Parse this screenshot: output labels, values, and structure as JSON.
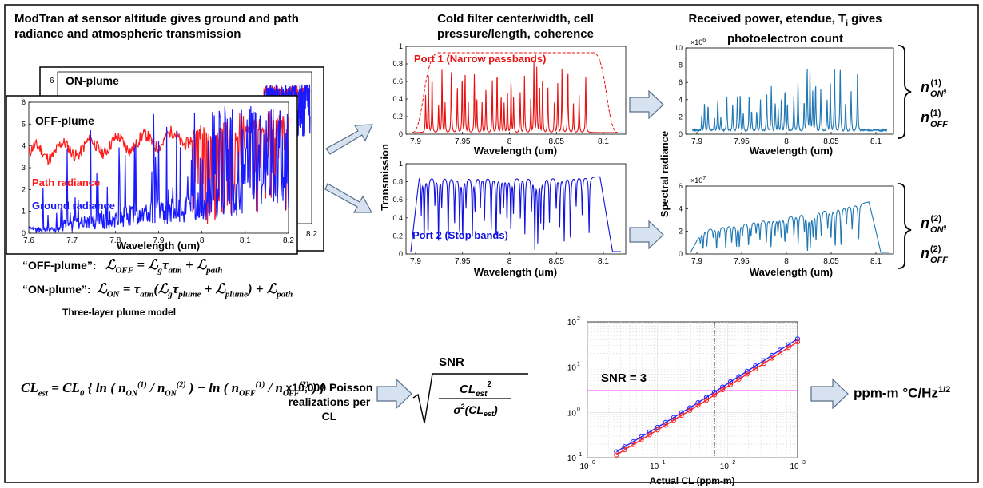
{
  "headings": {
    "left": "ModTran at sensor altitude gives ground and path radiance and atmospheric transmission",
    "middle": "Cold filter center/width, cell pressure/length, coherence",
    "right_prefix": "Received power, etendue, T",
    "right_sub": "i",
    "right_suffix": " gives photoelectron count"
  },
  "left_panel": {
    "back_label": "ON-plume",
    "front_label": "OFF-plume",
    "path_label": "Path radiance",
    "ground_label": "Ground radiance",
    "xlabel": "Wavelength (um)",
    "x_ticks": [
      "7.6",
      "7.7",
      "7.8",
      "7.9",
      "8",
      "8.1",
      "8.2"
    ],
    "y_ticks": [
      "0",
      "1",
      "2",
      "3",
      "4",
      "5",
      "6"
    ],
    "back_y_tick": "6",
    "back_x_tick": "8.2",
    "colors": {
      "path": "#ff1a1a",
      "ground": "#1a1aff"
    }
  },
  "equations": {
    "off_label": "“OFF-plume”:",
    "on_label": "“ON-plume”:",
    "model_caption": "Three-layer plume model",
    "realizations": "x10,000 Poisson realizations per CL",
    "snr_title": "SNR",
    "output": "ppm-m °C/Hz",
    "output_exp": "1/2"
  },
  "filter_panels": {
    "port1_label": "Port 1 (Narrow passbands)",
    "port2_label": "Port 2 (Stop bands)",
    "ylabel": "Transmission",
    "xlabel": "Wavelength (um)",
    "x_ticks": [
      "7.9",
      "7.95",
      "8",
      "8.05",
      "8.1"
    ],
    "y_ticks": [
      "0",
      "0.2",
      "0.4",
      "0.6",
      "0.8",
      "1"
    ],
    "colors": {
      "port1": "#e81010",
      "port2": "#1010e0"
    }
  },
  "radiance_panels": {
    "ylabel": "Spectral radiance",
    "xlabel": "Wavelength (um)",
    "x_ticks": [
      "7.9",
      "7.95",
      "8",
      "8.05",
      "8.1"
    ],
    "top_y_ticks": [
      "0",
      "2",
      "4",
      "6",
      "8",
      "10"
    ],
    "top_multiplier": "×10",
    "top_exp": "6",
    "bottom_y_ticks": [
      "0",
      "2",
      "4",
      "6"
    ],
    "bottom_multiplier": "×10",
    "bottom_exp": "7",
    "color": "#1f77b4"
  },
  "snr_chart": {
    "xlabel": "Actual CL (ppm-m)",
    "x_ticks": [
      "10",
      "10",
      "10",
      "10"
    ],
    "x_exps": [
      "0",
      "1",
      "2",
      "3"
    ],
    "y_ticks": [
      "10",
      "10",
      "10",
      "10"
    ],
    "y_exps": [
      "-1",
      "0",
      "1",
      "2"
    ],
    "threshold_label": "SNR = 3",
    "colors": {
      "red": "#ff2020",
      "blue": "#2020ff",
      "threshold": "#ff00ff"
    }
  },
  "chart_data": {
    "type": "line",
    "xlabel": "Actual CL (ppm-m)",
    "ylabel": "",
    "xscale": "log",
    "yscale": "log",
    "xlim": [
      1,
      1000
    ],
    "ylim": [
      0.1,
      100
    ],
    "grid": true,
    "x": [
      2.6,
      3.4,
      4.5,
      5.9,
      7.7,
      10,
      13,
      17,
      22,
      29,
      38,
      50,
      65,
      85,
      110,
      145,
      190,
      250,
      330,
      430,
      560,
      740,
      1000
    ],
    "series": [
      {
        "values": [
          0.135,
          0.175,
          0.225,
          0.29,
          0.37,
          0.47,
          0.6,
          0.77,
          0.99,
          1.27,
          1.65,
          2.15,
          2.8,
          3.65,
          4.75,
          6.2,
          8.1,
          10.6,
          13.9,
          18.2,
          23.8,
          31.2,
          42.0
        ]
      },
      {
        "values": [
          0.115,
          0.15,
          0.195,
          0.25,
          0.32,
          0.41,
          0.52,
          0.67,
          0.86,
          1.1,
          1.43,
          1.86,
          2.42,
          3.16,
          4.1,
          5.35,
          7.0,
          9.15,
          12.0,
          15.7,
          20.5,
          26.9,
          36.0
        ]
      }
    ],
    "threshold_y": 3,
    "vline_x": 65
  }
}
